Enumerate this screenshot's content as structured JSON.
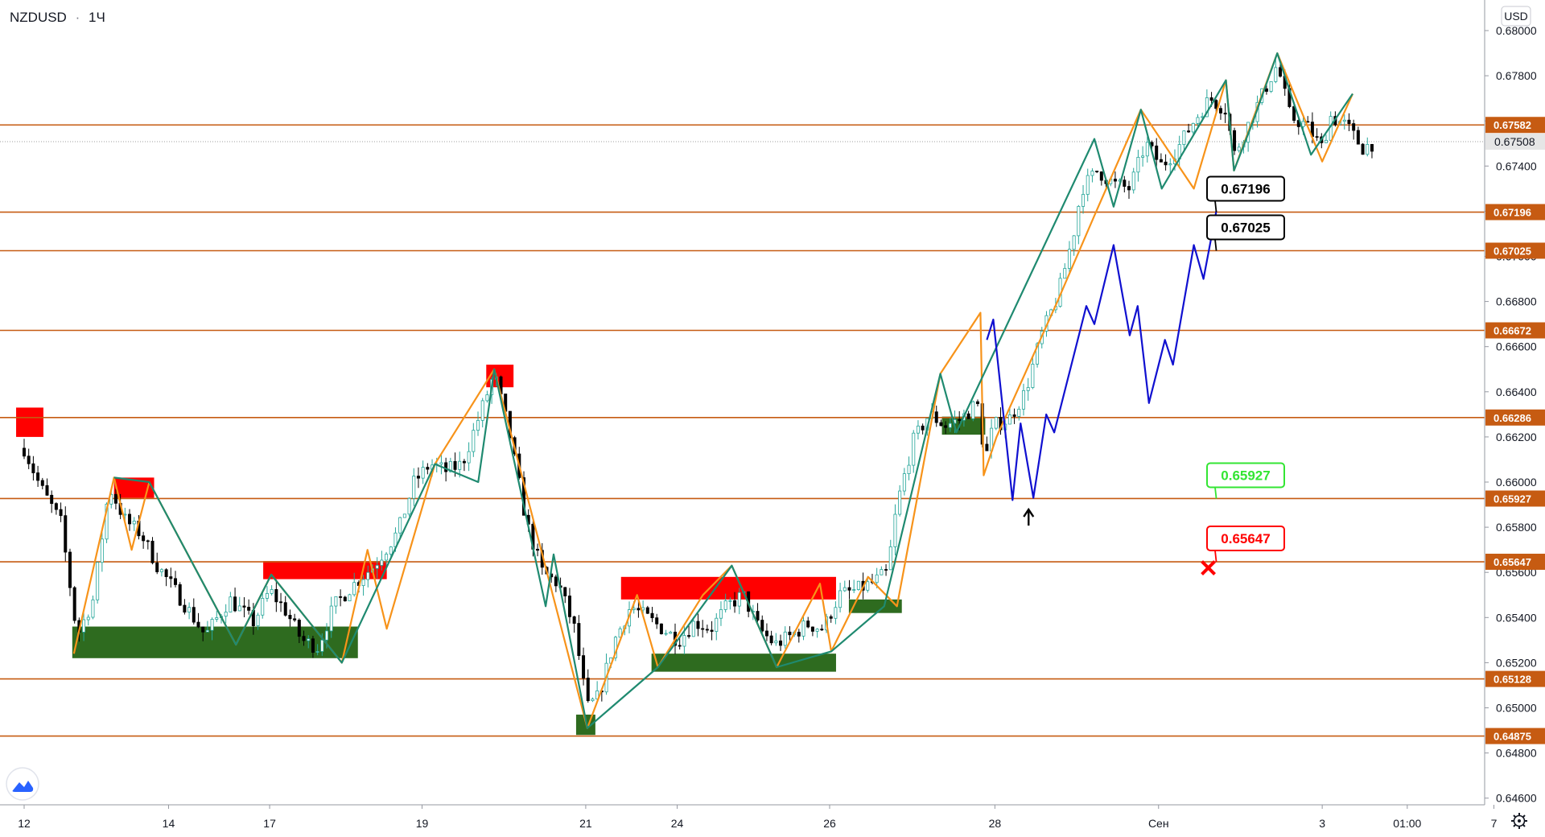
{
  "header": {
    "symbol": "NZDUSD",
    "separator": "·",
    "interval": "1Ч"
  },
  "price_axis": {
    "currency": "USD"
  },
  "chart_data": {
    "type": "candlestick",
    "title": "NZDUSD · 1Ч",
    "ylim": [
      0.6451,
      0.6817
    ],
    "y_ticks": [
      0.68,
      0.678,
      0.676,
      0.674,
      0.672,
      0.67,
      0.668,
      0.666,
      0.664,
      0.662,
      0.66,
      0.658,
      0.656,
      0.654,
      0.652,
      0.65,
      0.648,
      0.646
    ],
    "y_tick_labels": [
      "0.68000",
      "0.67800",
      "0.67600",
      "0.67400",
      "0.67200",
      "0.67000",
      "0.66800",
      "0.66600",
      "0.66400",
      "0.66200",
      "0.66000",
      "0.65800",
      "0.65600",
      "0.65400",
      "0.65200",
      "0.65000",
      "0.64800",
      "0.64600"
    ],
    "x_ticks": [
      {
        "label": "12",
        "x": 0.0
      },
      {
        "label": "14",
        "x": 9.0
      },
      {
        "label": "17",
        "x": 15.3
      },
      {
        "label": "19",
        "x": 24.8
      },
      {
        "label": "21",
        "x": 35.0
      },
      {
        "label": "24",
        "x": 40.7
      },
      {
        "label": "26",
        "x": 50.2
      },
      {
        "label": "28",
        "x": 60.5
      },
      {
        "label": "Сен",
        "x": 70.7
      },
      {
        "label": "3",
        "x": 80.9
      },
      {
        "label": "01:00",
        "x": 86.2
      },
      {
        "label": "7",
        "x": 91.6
      }
    ],
    "current_price": {
      "value": 0.67508,
      "label": "0.67508"
    },
    "levels": [
      {
        "value": 0.67582,
        "label": "0.67582"
      },
      {
        "value": 0.67196,
        "label": "0.67196"
      },
      {
        "value": 0.67025,
        "label": "0.67025"
      },
      {
        "value": 0.66672,
        "label": "0.66672"
      },
      {
        "value": 0.66286,
        "label": "0.66286"
      },
      {
        "value": 0.65927,
        "label": "0.65927"
      },
      {
        "value": 0.65647,
        "label": "0.65647"
      },
      {
        "value": 0.65128,
        "label": "0.65128"
      },
      {
        "value": 0.64875,
        "label": "0.64875"
      }
    ],
    "price_path": [
      [
        0.0,
        0.6615
      ],
      [
        1.0,
        0.6598
      ],
      [
        2.3,
        0.6582
      ],
      [
        3.3,
        0.6532
      ],
      [
        4.3,
        0.6548
      ],
      [
        5.3,
        0.6598
      ],
      [
        6.3,
        0.6583
      ],
      [
        7.3,
        0.6577
      ],
      [
        8.3,
        0.6563
      ],
      [
        9.8,
        0.6548
      ],
      [
        11.3,
        0.6532
      ],
      [
        12.8,
        0.6548
      ],
      [
        14.3,
        0.6538
      ],
      [
        15.3,
        0.6552
      ],
      [
        16.3,
        0.6543
      ],
      [
        17.3,
        0.653
      ],
      [
        18.3,
        0.6527
      ],
      [
        19.3,
        0.6545
      ],
      [
        20.3,
        0.6553
      ],
      [
        21.8,
        0.6563
      ],
      [
        23.3,
        0.6578
      ],
      [
        24.3,
        0.66
      ],
      [
        25.3,
        0.6608
      ],
      [
        26.3,
        0.6605
      ],
      [
        27.3,
        0.6608
      ],
      [
        28.3,
        0.6628
      ],
      [
        29.3,
        0.6648
      ],
      [
        30.3,
        0.662
      ],
      [
        31.3,
        0.6582
      ],
      [
        32.3,
        0.656
      ],
      [
        33.3,
        0.6555
      ],
      [
        34.3,
        0.6535
      ],
      [
        35.1,
        0.65
      ],
      [
        35.8,
        0.6505
      ],
      [
        36.8,
        0.653
      ],
      [
        37.8,
        0.6545
      ],
      [
        38.8,
        0.654
      ],
      [
        39.8,
        0.6535
      ],
      [
        40.8,
        0.653
      ],
      [
        41.8,
        0.6538
      ],
      [
        42.8,
        0.6535
      ],
      [
        43.8,
        0.6545
      ],
      [
        44.8,
        0.655
      ],
      [
        45.8,
        0.6535
      ],
      [
        46.8,
        0.6528
      ],
      [
        47.8,
        0.6532
      ],
      [
        48.8,
        0.6537
      ],
      [
        49.8,
        0.6535
      ],
      [
        50.8,
        0.655
      ],
      [
        51.8,
        0.6552
      ],
      [
        52.8,
        0.6555
      ],
      [
        53.8,
        0.656
      ],
      [
        54.4,
        0.659
      ],
      [
        55.4,
        0.6618
      ],
      [
        56.4,
        0.663
      ],
      [
        57.4,
        0.6625
      ],
      [
        58.4,
        0.6628
      ],
      [
        59.4,
        0.6635
      ],
      [
        59.9,
        0.661
      ],
      [
        60.4,
        0.6625
      ],
      [
        61.4,
        0.6628
      ],
      [
        62.4,
        0.664
      ],
      [
        63.4,
        0.6665
      ],
      [
        64.4,
        0.6682
      ],
      [
        65.4,
        0.671
      ],
      [
        65.9,
        0.673
      ],
      [
        66.9,
        0.6738
      ],
      [
        67.9,
        0.6732
      ],
      [
        68.9,
        0.673
      ],
      [
        69.9,
        0.675
      ],
      [
        70.9,
        0.674
      ],
      [
        71.9,
        0.6748
      ],
      [
        72.9,
        0.676
      ],
      [
        73.9,
        0.677
      ],
      [
        74.9,
        0.6765
      ],
      [
        75.4,
        0.6745
      ],
      [
        76.4,
        0.676
      ],
      [
        77.4,
        0.6775
      ],
      [
        78.1,
        0.6785
      ],
      [
        78.9,
        0.6762
      ],
      [
        79.9,
        0.6758
      ],
      [
        80.9,
        0.6748
      ],
      [
        81.4,
        0.6762
      ],
      [
        82.4,
        0.6758
      ],
      [
        83.4,
        0.6748
      ],
      [
        84.0,
        0.675
      ]
    ],
    "zigzag_up": [
      [
        3.1,
        0.6524
      ],
      [
        5.6,
        0.6602
      ],
      [
        6.7,
        0.657
      ],
      [
        7.8,
        0.66
      ],
      [
        13.2,
        0.6528
      ],
      [
        15.4,
        0.6559
      ],
      [
        19.8,
        0.652
      ],
      [
        21.4,
        0.657
      ],
      [
        22.6,
        0.6535
      ],
      [
        25.6,
        0.6608
      ],
      [
        29.3,
        0.665
      ],
      [
        35.1,
        0.6491
      ],
      [
        38.2,
        0.655
      ],
      [
        39.5,
        0.6518
      ],
      [
        42.3,
        0.655
      ],
      [
        44.1,
        0.6563
      ],
      [
        46.9,
        0.6518
      ],
      [
        49.6,
        0.6555
      ],
      [
        50.3,
        0.6525
      ],
      [
        52.6,
        0.6558
      ],
      [
        54.4,
        0.6545
      ],
      [
        57.1,
        0.6648
      ],
      [
        59.6,
        0.6675
      ],
      [
        59.8,
        0.6603
      ],
      [
        60.6,
        0.662
      ],
      [
        64.4,
        0.668
      ],
      [
        66.7,
        0.6718
      ],
      [
        69.6,
        0.6765
      ],
      [
        72.9,
        0.673
      ],
      [
        74.9,
        0.6778
      ],
      [
        75.4,
        0.6738
      ],
      [
        78.1,
        0.679
      ],
      [
        80.9,
        0.6742
      ],
      [
        82.8,
        0.6772
      ]
    ],
    "zigzag_down": [
      [
        5.6,
        0.6602
      ],
      [
        7.8,
        0.66
      ],
      [
        13.2,
        0.6528
      ],
      [
        15.4,
        0.6559
      ],
      [
        19.8,
        0.652
      ],
      [
        25.6,
        0.6608
      ],
      [
        28.3,
        0.66
      ],
      [
        29.3,
        0.665
      ],
      [
        32.5,
        0.6545
      ],
      [
        33.0,
        0.6568
      ],
      [
        35.1,
        0.6491
      ],
      [
        39.5,
        0.6518
      ],
      [
        44.1,
        0.6563
      ],
      [
        46.9,
        0.6518
      ],
      [
        50.3,
        0.6525
      ],
      [
        53.6,
        0.6545
      ],
      [
        57.1,
        0.6648
      ],
      [
        58.1,
        0.6622
      ],
      [
        66.7,
        0.6752
      ],
      [
        67.9,
        0.6722
      ],
      [
        69.6,
        0.6765
      ],
      [
        70.9,
        0.673
      ],
      [
        74.9,
        0.6778
      ],
      [
        75.4,
        0.6738
      ],
      [
        76.6,
        0.676
      ],
      [
        78.1,
        0.679
      ],
      [
        80.2,
        0.6745
      ],
      [
        82.8,
        0.6772
      ]
    ],
    "projection": [
      [
        60.0,
        0.6663
      ],
      [
        60.4,
        0.6672
      ],
      [
        61.6,
        0.6592
      ],
      [
        62.1,
        0.6626
      ],
      [
        62.9,
        0.6593
      ],
      [
        63.7,
        0.663
      ],
      [
        64.2,
        0.6622
      ],
      [
        66.2,
        0.6678
      ],
      [
        66.7,
        0.667
      ],
      [
        67.9,
        0.6705
      ],
      [
        68.9,
        0.6665
      ],
      [
        69.4,
        0.6678
      ],
      [
        70.1,
        0.6635
      ],
      [
        71.1,
        0.6663
      ],
      [
        71.6,
        0.6652
      ],
      [
        72.9,
        0.6705
      ],
      [
        73.5,
        0.669
      ],
      [
        74.3,
        0.672
      ]
    ],
    "supply_zones": [
      [
        -0.5,
        1.2,
        0.662,
        0.6633
      ],
      [
        28.8,
        30.5,
        0.6642,
        0.6652
      ],
      [
        5.6,
        8.1,
        0.6593,
        0.6602
      ],
      [
        14.9,
        22.6,
        0.6557,
        0.6565
      ],
      [
        37.2,
        50.6,
        0.6548,
        0.6558
      ]
    ],
    "demand_zones": [
      [
        3.0,
        20.8,
        0.6522,
        0.6536
      ],
      [
        34.4,
        35.6,
        0.6488,
        0.6497
      ],
      [
        39.1,
        50.6,
        0.6516,
        0.6524
      ],
      [
        51.4,
        54.7,
        0.6542,
        0.6548
      ],
      [
        57.2,
        59.9,
        0.6621,
        0.6629
      ]
    ],
    "annotations": [
      {
        "label": "0.67196",
        "value": 0.67196,
        "x": 74.3,
        "color": "#000000"
      },
      {
        "label": "0.67025",
        "value": 0.67025,
        "x": 74.3,
        "color": "#000000"
      },
      {
        "label": "0.65927",
        "value": 0.65927,
        "x": 74.3,
        "color": "#33e533"
      },
      {
        "label": "0.65647",
        "value": 0.65647,
        "x": 74.3,
        "color": "#ff0000"
      }
    ],
    "markers": [
      {
        "kind": "up-arrow",
        "x": 62.6,
        "value": 0.659
      },
      {
        "kind": "cross",
        "x": 73.8,
        "value": 0.6562
      }
    ],
    "colors": {
      "up_candle": "#26a69a",
      "down_candle": "#000000",
      "level_line": "#c65b12",
      "zigzag_up": "#f7931a",
      "zigzag_down": "#1f8a70",
      "projection": "#1010d0",
      "supply": "#ff0000",
      "demand": "#2e6b1f",
      "current_price": "#9e9e9e"
    }
  }
}
